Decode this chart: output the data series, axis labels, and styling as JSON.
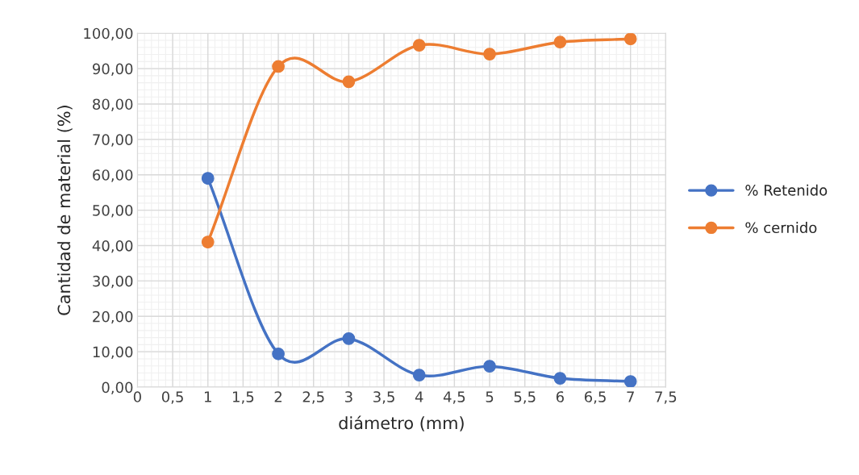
{
  "chart_data": {
    "type": "line",
    "xlabel": "diámetro (mm)",
    "ylabel": "Cantidad de material (%)",
    "x": [
      1,
      2,
      3,
      4,
      5,
      6,
      7
    ],
    "series": [
      {
        "name": "% Retenido",
        "color": "#4472c4",
        "values": [
          59.0,
          9.4,
          13.7,
          3.4,
          5.9,
          2.5,
          1.6
        ]
      },
      {
        "name": "% cernido",
        "color": "#ed7d31",
        "values": [
          41.0,
          90.6,
          86.3,
          96.6,
          94.1,
          97.5,
          98.4
        ]
      }
    ],
    "xlim": [
      0,
      7.5
    ],
    "ylim": [
      0,
      100
    ],
    "xticks": [
      0,
      {
        "value": 0.5,
        "label": "0,5"
      },
      1,
      {
        "value": 1.5,
        "label": "1,5"
      },
      2,
      {
        "value": 2.5,
        "label": "2,5"
      },
      3,
      {
        "value": 3.5,
        "label": "3,5"
      },
      4,
      {
        "value": 4.5,
        "label": "4,5"
      },
      5,
      {
        "value": 5.5,
        "label": "5,5"
      },
      6,
      {
        "value": 6.5,
        "label": "6,5"
      },
      7,
      {
        "value": 7.5,
        "label": "7,5"
      }
    ],
    "yticks": [
      {
        "value": 0,
        "label": "0,00"
      },
      {
        "value": 10,
        "label": "10,00"
      },
      {
        "value": 20,
        "label": "20,00"
      },
      {
        "value": 30,
        "label": "30,00"
      },
      {
        "value": 40,
        "label": "40,00"
      },
      {
        "value": 50,
        "label": "50,00"
      },
      {
        "value": 60,
        "label": "60,00"
      },
      {
        "value": 70,
        "label": "70,00"
      },
      {
        "value": 80,
        "label": "80,00"
      },
      {
        "value": 90,
        "label": "90,00"
      },
      {
        "value": 100,
        "label": "100,00"
      }
    ],
    "grid": true,
    "legend": "right",
    "marker": "circle",
    "line_style": "solid"
  }
}
